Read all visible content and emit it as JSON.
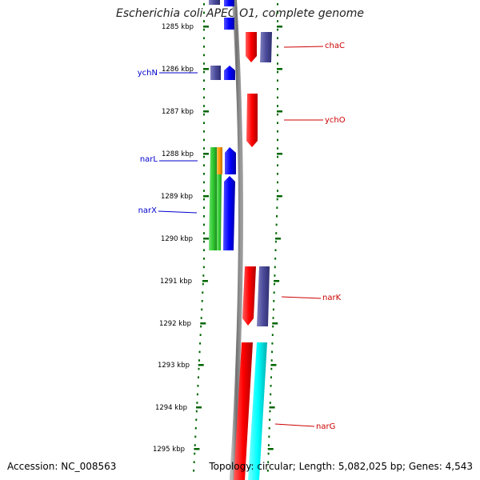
{
  "title": "Escherichia coli APEC O1, complete genome",
  "footer": {
    "accession": "Accession: NC_008563",
    "summary": "Topology: circular; Length: 5,082,025 bp; Genes: 4,543"
  },
  "kbp_ticks": [
    "1285 kbp",
    "1286 kbp",
    "1287 kbp",
    "1288 kbp",
    "1289 kbp",
    "1290 kbp",
    "1291 kbp",
    "1292 kbp",
    "1293 kbp",
    "1294 kbp",
    "1295 kbp"
  ],
  "genes_left": [
    {
      "name": "ychN",
      "color": "#0000cc"
    },
    {
      "name": "narL",
      "color": "#0000cc"
    },
    {
      "name": "narX",
      "color": "#0000cc"
    }
  ],
  "genes_right": [
    {
      "name": "chaC",
      "color": "#cc0000"
    },
    {
      "name": "ychO",
      "color": "#cc0000"
    },
    {
      "name": "narK",
      "color": "#cc0000"
    },
    {
      "name": "narG",
      "color": "#cc0000"
    }
  ],
  "colors": {
    "tick": "#006600",
    "axis": "#808080",
    "forward_strand": "#ff0000",
    "reverse_strand": "#0000ff",
    "forward_alt": "#00ffff",
    "reverse_alt": "#33cc33",
    "slate": "#4b4b9b",
    "orange": "#ff9900"
  }
}
